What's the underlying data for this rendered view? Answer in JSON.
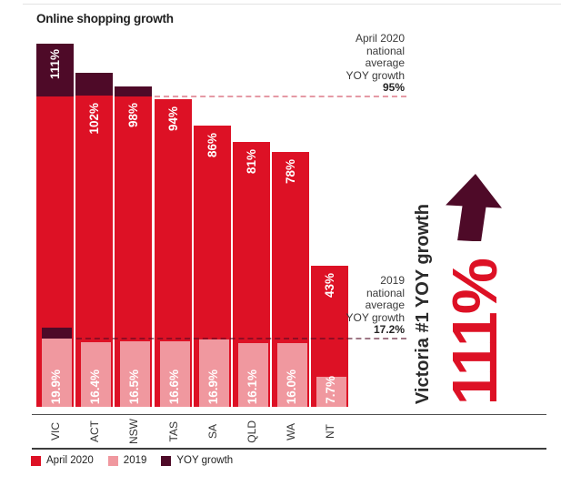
{
  "colors": {
    "april2020": "#DD1125",
    "y2019": "#F0989F",
    "yoy": "#4E0A28",
    "text_dark": "#2B2B2B",
    "annotation_text": "#3A3A3A",
    "dash_april": "#E59AA5",
    "dash_2019": "#500A23",
    "axis_line": "#4F4F4F"
  },
  "chart_data": {
    "type": "bar",
    "title": "Online shopping growth",
    "categories": [
      "VIC",
      "ACT",
      "NSW",
      "TAS",
      "SA",
      "QLD",
      "WA",
      "NT"
    ],
    "series": [
      {
        "name": "April 2020",
        "values": [
          111,
          102,
          98,
          94,
          86,
          81,
          78,
          43
        ],
        "labels": [
          "111%",
          "102%",
          "98%",
          "94%",
          "86%",
          "81%",
          "78%",
          "43%"
        ]
      },
      {
        "name": "2019",
        "values": [
          19.9,
          16.4,
          16.5,
          16.6,
          16.9,
          16.1,
          16.0,
          7.7
        ],
        "labels": [
          "19.9%",
          "16.4%",
          "16.5%",
          "16.6%",
          "16.9%",
          "16.1%",
          "16.0%",
          "7.7%"
        ]
      },
      {
        "name": "YOY growth",
        "note": "dark segments show amount above national average"
      }
    ],
    "annotations": {
      "april_avg": {
        "lines": [
          "April 2020",
          "national",
          "average",
          "YOY growth"
        ],
        "value": "95%",
        "value_num": 95
      },
      "y2019_avg": {
        "lines": [
          "2019",
          "national",
          "average",
          "YOY growth"
        ],
        "value": "17.2%",
        "value_num": 17.2
      }
    },
    "legend_position": "bottom",
    "grid": false
  },
  "legend": [
    {
      "label": "April 2020",
      "color_key": "april2020"
    },
    {
      "label": "2019",
      "color_key": "y2019"
    },
    {
      "label": "YOY growth",
      "color_key": "yoy"
    }
  ],
  "callout": {
    "title": "Victoria #1 YOY growth",
    "value": "111%",
    "arrow": "up-arrow"
  }
}
